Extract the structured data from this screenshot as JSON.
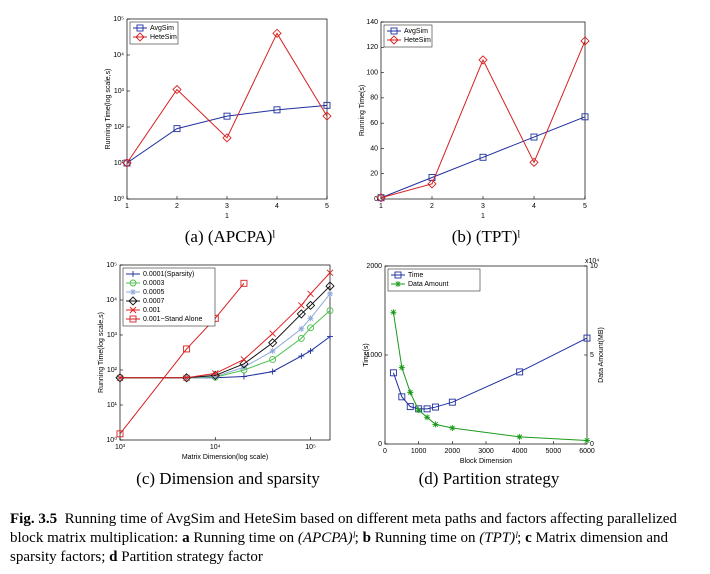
{
  "chart_data": [
    {
      "type": "line",
      "title": "(a) (APCPA)ˡ",
      "xlabel": "1",
      "ylabel": "Running Time(log scale,s)",
      "x": [
        1,
        2,
        3,
        4,
        5
      ],
      "xlim": [
        1,
        5
      ],
      "xticks": [
        1,
        2,
        3,
        4,
        5
      ],
      "ylog": true,
      "ylim": [
        1,
        100000
      ],
      "yticks": [
        {
          "value": 1,
          "label": "10⁰"
        },
        {
          "value": 10,
          "label": "10¹"
        },
        {
          "value": 100,
          "label": "10²"
        },
        {
          "value": 1000,
          "label": "10³"
        },
        {
          "value": 10000,
          "label": "10⁴"
        },
        {
          "value": 100000,
          "label": "10⁵"
        }
      ],
      "legend": "upper left",
      "series": [
        {
          "name": "AvgSim",
          "color": "#1f2f9f",
          "marker": "square",
          "values": [
            10,
            90,
            200,
            300,
            400
          ]
        },
        {
          "name": "HeteSim",
          "color": "#d62020",
          "marker": "diamond",
          "values": [
            10,
            1100,
            50,
            40000,
            200
          ]
        }
      ]
    },
    {
      "type": "line",
      "title": "(b) (TPT)ˡ",
      "xlabel": "1",
      "ylabel": "Running Time(s)",
      "x": [
        1,
        2,
        3,
        4,
        5
      ],
      "xlim": [
        1,
        5
      ],
      "xticks": [
        1,
        2,
        3,
        4,
        5
      ],
      "ylim": [
        0,
        140
      ],
      "yticks": [
        0,
        20,
        40,
        60,
        80,
        100,
        120,
        140
      ],
      "legend": "upper left",
      "series": [
        {
          "name": "AvgSim",
          "color": "#1f2f9f",
          "marker": "square",
          "values": [
            1,
            17,
            33,
            49,
            65
          ]
        },
        {
          "name": "HeteSim",
          "color": "#d62020",
          "marker": "diamond",
          "values": [
            1,
            12,
            110,
            29,
            125
          ]
        }
      ]
    },
    {
      "type": "line",
      "title": "(c) Dimension and sparsity",
      "xlabel": "Matrix Dimension(log scale)",
      "ylabel": "Running Time(log scale,s)",
      "xlog": true,
      "x": [
        1000,
        5000,
        10000,
        20000,
        40000,
        80000,
        100000,
        160000
      ],
      "xlim": [
        1000,
        160000
      ],
      "xticks": [
        {
          "value": 1000,
          "label": "10³"
        },
        {
          "value": 10000,
          "label": "10⁴"
        },
        {
          "value": 100000,
          "label": "10⁵"
        }
      ],
      "ylog": true,
      "ylim": [
        1,
        100000
      ],
      "yticks": [
        {
          "value": 1,
          "label": "10⁰"
        },
        {
          "value": 10,
          "label": "10¹"
        },
        {
          "value": 100,
          "label": "10²"
        },
        {
          "value": 1000,
          "label": "10³"
        },
        {
          "value": 10000,
          "label": "10⁴"
        },
        {
          "value": 100000,
          "label": "10⁵"
        }
      ],
      "legend": "upper left",
      "series": [
        {
          "name": "0.0001(Sparsity)",
          "color": "#1f2f9f",
          "marker": "plus",
          "values": [
            60,
            60,
            60,
            65,
            90,
            250,
            350,
            900
          ]
        },
        {
          "name": "0.0003",
          "color": "#4cc04c",
          "marker": "circle",
          "values": [
            60,
            60,
            62,
            100,
            200,
            800,
            1600,
            5000
          ]
        },
        {
          "name": "0.0005",
          "color": "#8fa8d8",
          "marker": "star",
          "values": [
            60,
            60,
            65,
            120,
            350,
            1500,
            3000,
            15000
          ]
        },
        {
          "name": "0.0007",
          "color": "#111111",
          "marker": "diamond",
          "values": [
            60,
            60,
            70,
            150,
            600,
            4000,
            7000,
            25000
          ]
        },
        {
          "name": "0.001",
          "color": "#e02020",
          "marker": "x",
          "values": [
            60,
            60,
            80,
            200,
            1100,
            7000,
            15000,
            60000
          ]
        },
        {
          "name": "0.001−Stand Alone",
          "color": "#d62020",
          "marker": "square",
          "values": [
            1.5,
            400,
            3000,
            30000,
            null,
            null,
            null,
            null
          ]
        }
      ]
    },
    {
      "type": "line",
      "title": "(d) Partition strategy",
      "xlabel": "Block Dimension",
      "ylabel": "Time(s)",
      "y2label": "Data Amount(MB)",
      "y2scale": "x10⁴",
      "x": [
        250,
        500,
        750,
        1000,
        1250,
        1500,
        2000,
        4000,
        6000
      ],
      "xlim": [
        0,
        6000
      ],
      "xticks": [
        0,
        1000,
        2000,
        3000,
        4000,
        5000,
        6000
      ],
      "ylim": [
        0,
        2000
      ],
      "yticks": [
        0,
        1000,
        2000
      ],
      "y2lim": [
        0,
        10
      ],
      "y2ticks": [
        0,
        5,
        10
      ],
      "legend": "upper left",
      "series": [
        {
          "name": "Time",
          "color": "#1f2f9f",
          "marker": "square",
          "values": [
            800,
            530,
            420,
            395,
            395,
            415,
            470,
            810,
            1190
          ]
        },
        {
          "name": "Data Amount",
          "color": "#1a9a1a",
          "marker": "star",
          "axis": "y2",
          "values": [
            7.4,
            4.3,
            2.9,
            1.9,
            1.5,
            1.1,
            0.9,
            0.4,
            0.2
          ]
        }
      ]
    }
  ],
  "figure_caption": {
    "segments": [
      {
        "text": "Fig. 3.5",
        "bold": true
      },
      {
        "text": "  Running time of AvgSim and HeteSim based on different meta paths and factors affecting parallelized block matrix multiplication: "
      },
      {
        "text": "a",
        "bold": true
      },
      {
        "text": " Running time on "
      },
      {
        "text": "(APCPA)ˡ",
        "italic": true
      },
      {
        "text": "; "
      },
      {
        "text": "b",
        "bold": true
      },
      {
        "text": " Running time on "
      },
      {
        "text": "(TPT)ˡ",
        "italic": true
      },
      {
        "text": "; "
      },
      {
        "text": "c",
        "bold": true
      },
      {
        "text": " Matrix dimension and sparsity factors; "
      },
      {
        "text": "d",
        "bold": true
      },
      {
        "text": " Partition strategy factor"
      }
    ]
  }
}
